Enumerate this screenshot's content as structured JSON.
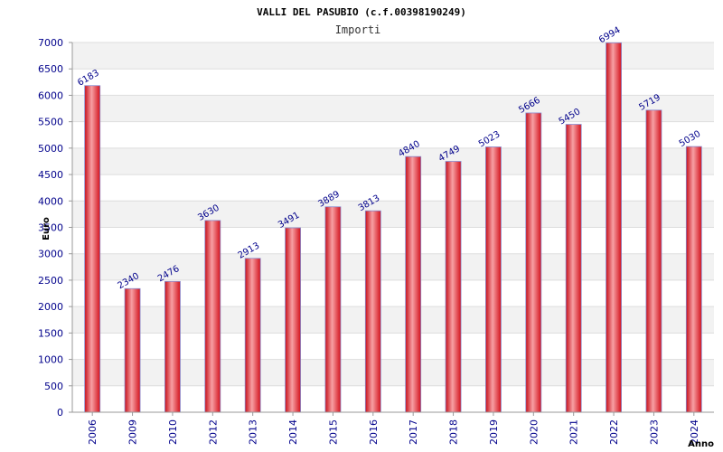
{
  "chart_data": {
    "type": "bar",
    "title": "VALLI DEL PASUBIO (c.f.00398190249)",
    "subtitle": "Importi",
    "ylabel": "Euro",
    "xlabel": "Anno",
    "categories": [
      "2006",
      "2009",
      "2010",
      "2012",
      "2013",
      "2014",
      "2015",
      "2016",
      "2017",
      "2018",
      "2019",
      "2020",
      "2021",
      "2022",
      "2023",
      "2024"
    ],
    "values": [
      6183,
      2340,
      2476,
      3630,
      2913,
      3491,
      3889,
      3813,
      4840,
      4749,
      5023,
      5666,
      5450,
      6994,
      5719,
      5030
    ],
    "ylim": [
      0,
      7000
    ],
    "yticks": [
      0,
      500,
      1000,
      1500,
      2000,
      2500,
      3000,
      3500,
      4000,
      4500,
      5000,
      5500,
      6000,
      6500,
      7000
    ],
    "grid": true,
    "bar_color": "#e8202a",
    "bar_edge_color": "#8888cc",
    "label_color": "#00008b"
  }
}
